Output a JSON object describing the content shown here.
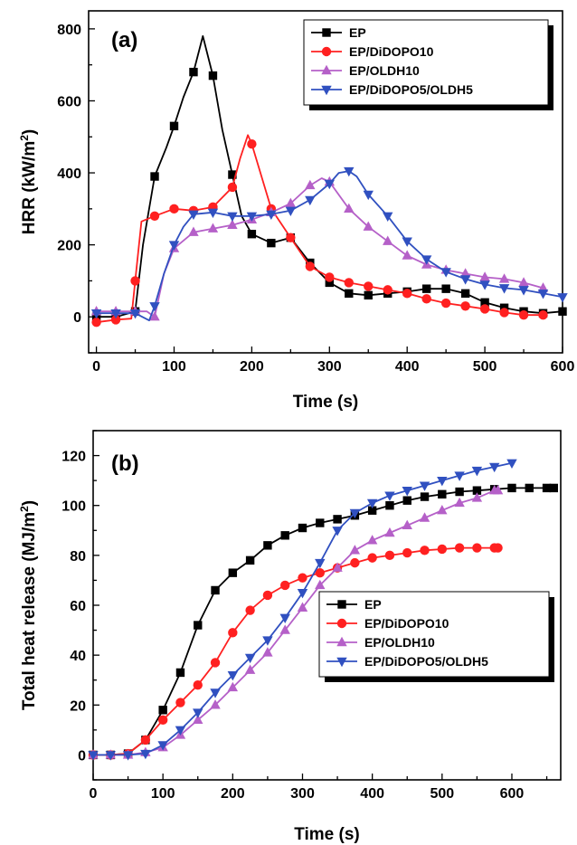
{
  "chart_data": [
    {
      "type": "line",
      "panel_label": "(a)",
      "xlabel": "Time (s)",
      "ylabel_main": "HRR (kW/m",
      "ylabel_sup": "2",
      "ylabel_tail": ")",
      "xlim": [
        -10,
        600
      ],
      "ylim": [
        -100,
        850
      ],
      "xticks": [
        0,
        100,
        200,
        300,
        400,
        500,
        600
      ],
      "yticks": [
        0,
        200,
        400,
        600,
        800
      ],
      "legend_position": "top-right",
      "series": [
        {
          "name": "EP",
          "color": "#000000",
          "marker": "square",
          "x": [
            0,
            25,
            50,
            60,
            75,
            90,
            100,
            112,
            125,
            137,
            150,
            162,
            175,
            187,
            200,
            225,
            250,
            275,
            300,
            325,
            350,
            375,
            400,
            425,
            450,
            475,
            500,
            525,
            550,
            575,
            600
          ],
          "y": [
            0,
            0,
            15,
            200,
            390,
            470,
            530,
            610,
            680,
            780,
            670,
            520,
            395,
            280,
            230,
            205,
            220,
            150,
            95,
            65,
            60,
            65,
            70,
            78,
            78,
            65,
            40,
            25,
            15,
            10,
            15
          ],
          "marker_x": [
            0,
            25,
            50,
            75,
            100,
            125,
            150,
            175,
            200,
            225,
            250,
            275,
            300,
            325,
            350,
            375,
            400,
            425,
            450,
            475,
            500,
            525,
            550,
            575,
            600
          ]
        },
        {
          "name": "EP/DiDOPO10",
          "color": "#ff2020",
          "marker": "circle",
          "x": [
            0,
            25,
            45,
            50,
            58,
            75,
            100,
            125,
            150,
            175,
            185,
            195,
            200,
            225,
            250,
            275,
            300,
            325,
            350,
            375,
            400,
            425,
            450,
            475,
            500,
            525,
            550,
            575
          ],
          "y": [
            -15,
            -8,
            -5,
            100,
            265,
            280,
            300,
            295,
            305,
            360,
            440,
            505,
            480,
            300,
            220,
            140,
            110,
            95,
            85,
            75,
            65,
            50,
            38,
            30,
            22,
            12,
            5,
            5
          ],
          "marker_x": [
            0,
            25,
            50,
            75,
            100,
            125,
            150,
            175,
            200,
            225,
            250,
            275,
            300,
            325,
            350,
            375,
            400,
            425,
            450,
            475,
            500,
            525,
            550,
            575
          ]
        },
        {
          "name": "EP/OLDH10",
          "color": "#b560c8",
          "marker": "triangle-up",
          "x": [
            0,
            25,
            50,
            65,
            75,
            87,
            100,
            125,
            150,
            175,
            200,
            225,
            250,
            275,
            290,
            300,
            325,
            350,
            375,
            400,
            425,
            450,
            475,
            500,
            525,
            550,
            575
          ],
          "y": [
            15,
            15,
            15,
            15,
            0,
            120,
            190,
            235,
            245,
            255,
            270,
            290,
            315,
            365,
            385,
            375,
            300,
            250,
            210,
            170,
            145,
            130,
            120,
            110,
            105,
            95,
            80
          ],
          "marker_x": [
            0,
            25,
            50,
            75,
            100,
            125,
            150,
            175,
            200,
            225,
            250,
            275,
            300,
            325,
            350,
            375,
            400,
            425,
            450,
            475,
            500,
            525,
            550,
            575
          ]
        },
        {
          "name": "EP/DiDOPO5/OLDH5",
          "color": "#3050c0",
          "marker": "triangle-down",
          "x": [
            0,
            25,
            50,
            68,
            75,
            87,
            100,
            112,
            125,
            150,
            175,
            200,
            225,
            250,
            275,
            300,
            312,
            325,
            335,
            350,
            375,
            400,
            425,
            450,
            475,
            500,
            525,
            550,
            575,
            600
          ],
          "y": [
            10,
            10,
            10,
            -10,
            30,
            120,
            200,
            250,
            285,
            290,
            280,
            280,
            285,
            295,
            325,
            370,
            400,
            405,
            390,
            340,
            280,
            210,
            160,
            125,
            105,
            90,
            80,
            75,
            65,
            55
          ],
          "marker_x": [
            0,
            25,
            50,
            75,
            100,
            125,
            150,
            175,
            200,
            225,
            250,
            275,
            300,
            325,
            350,
            375,
            400,
            425,
            450,
            475,
            500,
            525,
            550,
            575,
            600
          ]
        }
      ]
    },
    {
      "type": "line",
      "panel_label": "(b)",
      "xlabel": "Time (s)",
      "ylabel_main": "Total heat release (MJ/m",
      "ylabel_sup": "2",
      "ylabel_tail": ")",
      "xlim": [
        0,
        670
      ],
      "ylim": [
        -10,
        130
      ],
      "xticks": [
        0,
        100,
        200,
        300,
        400,
        500,
        600
      ],
      "yticks": [
        0,
        20,
        40,
        60,
        80,
        100,
        120
      ],
      "legend_position": "bottom-right",
      "series": [
        {
          "name": "EP",
          "color": "#000000",
          "marker": "square",
          "x": [
            0,
            25,
            50,
            75,
            100,
            125,
            150,
            175,
            200,
            225,
            250,
            275,
            300,
            325,
            350,
            375,
            400,
            425,
            450,
            475,
            500,
            525,
            550,
            575,
            600,
            625,
            650,
            660
          ],
          "y": [
            0,
            0,
            0.5,
            6,
            18,
            33,
            52,
            66,
            73,
            78,
            84,
            88,
            91,
            93,
            94.5,
            96,
            98,
            100,
            102,
            103.5,
            104.5,
            105.5,
            106,
            106.5,
            107,
            107,
            107,
            107
          ]
        },
        {
          "name": "EP/DiDOPO10",
          "color": "#ff2020",
          "marker": "circle",
          "x": [
            0,
            25,
            50,
            75,
            100,
            125,
            150,
            175,
            200,
            225,
            250,
            275,
            300,
            325,
            350,
            375,
            400,
            425,
            450,
            475,
            500,
            525,
            550,
            575,
            580
          ],
          "y": [
            0,
            0,
            0.5,
            6,
            14,
            21,
            28,
            37,
            49,
            58,
            64,
            68,
            71,
            73,
            75,
            77,
            79,
            80,
            81,
            82,
            82.5,
            83,
            83,
            83,
            83
          ]
        },
        {
          "name": "EP/OLDH10",
          "color": "#b560c8",
          "marker": "triangle-up",
          "x": [
            0,
            25,
            50,
            75,
            100,
            125,
            150,
            175,
            200,
            225,
            250,
            275,
            300,
            325,
            350,
            375,
            400,
            425,
            450,
            475,
            500,
            525,
            550,
            575,
            580
          ],
          "y": [
            0,
            0,
            0,
            1,
            3,
            8,
            14,
            20,
            27,
            34,
            41,
            50,
            59,
            68,
            75,
            82,
            86,
            89,
            92,
            95,
            98,
            101,
            103,
            106,
            106
          ]
        },
        {
          "name": "EP/DiDOPO5/OLDH5",
          "color": "#3050c0",
          "marker": "triangle-down",
          "x": [
            0,
            25,
            50,
            75,
            100,
            125,
            150,
            175,
            200,
            225,
            250,
            275,
            300,
            325,
            350,
            375,
            400,
            425,
            450,
            475,
            500,
            525,
            550,
            575,
            600
          ],
          "y": [
            0,
            0,
            0,
            0.5,
            4,
            10,
            17,
            25,
            32,
            39,
            46,
            55,
            65,
            77,
            90,
            97,
            101,
            104,
            106,
            108,
            110,
            112,
            114,
            115.5,
            117
          ]
        }
      ]
    }
  ]
}
